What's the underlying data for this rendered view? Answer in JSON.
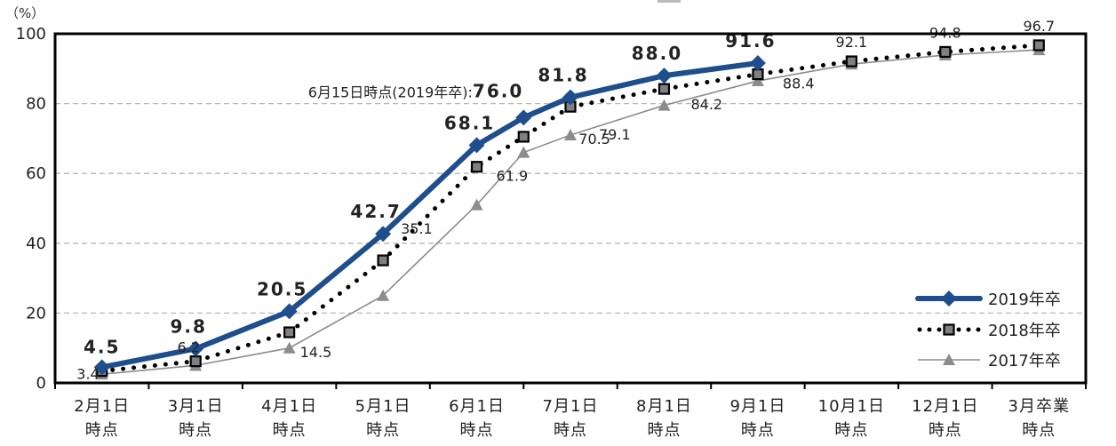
{
  "chart_data": {
    "type": "line",
    "title": "",
    "ylabel": "（%）",
    "xlabel": "",
    "ylim": [
      0,
      100
    ],
    "yticks": [
      0,
      20,
      40,
      60,
      80,
      100
    ],
    "grid": "horizontal dashed",
    "legend_position": "inside lower right",
    "categories": [
      [
        "2月1日",
        "時点"
      ],
      [
        "3月1日",
        "時点"
      ],
      [
        "4月1日",
        "時点"
      ],
      [
        "5月1日",
        "時点"
      ],
      [
        "6月1日",
        "時点"
      ],
      [
        "7月1日",
        "時点"
      ],
      [
        "8月1日",
        "時点"
      ],
      [
        "9月1日",
        "時点"
      ],
      [
        "10月1日",
        "時点"
      ],
      [
        "12月1日",
        "時点"
      ],
      [
        "3月卒業",
        "時点"
      ]
    ],
    "x_positions": [
      0,
      1,
      2,
      3,
      4,
      4.5,
      5,
      6,
      7,
      8,
      9,
      10
    ],
    "x_position_labels": [
      "2月1日",
      "3月1日",
      "4月1日",
      "5月1日",
      "6月1日",
      "6月15日",
      "7月1日",
      "8月1日",
      "9月1日",
      "10月1日",
      "12月1日",
      "3月卒業"
    ],
    "series": [
      {
        "name": "2019年卒",
        "color": "#1f4e8c",
        "style": "solid-thick",
        "marker": "diamond",
        "x": [
          0,
          1,
          2,
          3,
          4,
          4.5,
          5,
          6,
          7
        ],
        "values": [
          4.5,
          9.8,
          20.5,
          42.7,
          68.1,
          76.0,
          81.8,
          88.0,
          91.6
        ],
        "labels": [
          "4.5",
          "9.8",
          "20.5",
          "42.7",
          "68.1",
          "76.0",
          "81.8",
          "88.0",
          "91.6"
        ]
      },
      {
        "name": "2018年卒",
        "color": "#000000",
        "marker_fill": "#808080",
        "style": "dotted",
        "marker": "square",
        "x": [
          0,
          1,
          2,
          3,
          4,
          4.5,
          5,
          6,
          7,
          8,
          9,
          10
        ],
        "values": [
          3.4,
          6.2,
          14.5,
          35.1,
          61.9,
          70.5,
          79.1,
          84.2,
          88.4,
          92.1,
          94.8,
          96.7
        ],
        "labels": [
          "3.4",
          "6.2",
          "14.5",
          "35.1",
          "61.9",
          "70.5",
          "79.1",
          "84.2",
          "88.4",
          "92.1",
          "94.8",
          "96.7"
        ]
      },
      {
        "name": "2017年卒",
        "color": "#8c8c8c",
        "style": "solid-thin",
        "marker": "triangle",
        "x": [
          0,
          1,
          2,
          3,
          4,
          4.5,
          5,
          6,
          7,
          8,
          9,
          10
        ],
        "values": [
          2.5,
          5.0,
          10.0,
          25.0,
          51.0,
          66.0,
          71.0,
          79.5,
          86.5,
          91.3,
          93.9,
          95.4
        ],
        "labels": []
      }
    ],
    "annotations": [
      {
        "text_prefix": "6月15日時点(2019年卒):",
        "text_value": "76.0",
        "series": "2019年卒",
        "x": 4.5
      }
    ]
  },
  "legend": {
    "items": [
      {
        "label": "2019年卒"
      },
      {
        "label": "2018年卒"
      },
      {
        "label": "2017年卒"
      }
    ]
  },
  "axis": {
    "y_unit": "（%）"
  }
}
